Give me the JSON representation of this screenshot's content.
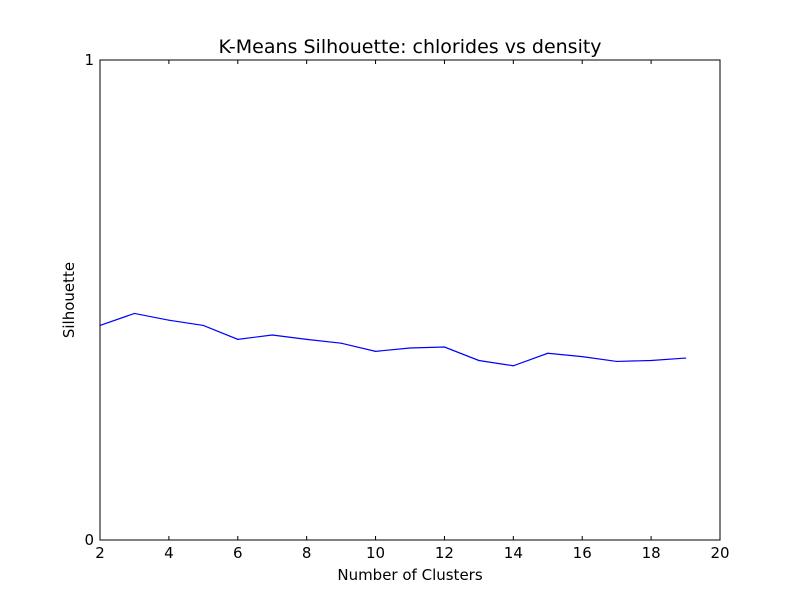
{
  "chart_data": {
    "type": "line",
    "title": "K-Means Silhouette: chlorides vs density",
    "xlabel": "Number of Clusters",
    "ylabel": "Silhouette",
    "xlim": [
      2,
      20
    ],
    "ylim": [
      0,
      1
    ],
    "x_ticks": [
      2,
      4,
      6,
      8,
      10,
      12,
      14,
      16,
      18,
      20
    ],
    "y_ticks": [
      0,
      1
    ],
    "grid": false,
    "line_color": "#0000ff",
    "series": [
      {
        "x": [
          2,
          3,
          4,
          5,
          6,
          7,
          8,
          9,
          10,
          11,
          12,
          13,
          14,
          15,
          16,
          17,
          18,
          19
        ],
        "values": [
          0.447,
          0.472,
          0.458,
          0.447,
          0.418,
          0.427,
          0.418,
          0.41,
          0.393,
          0.4,
          0.402,
          0.374,
          0.363,
          0.389,
          0.382,
          0.372,
          0.374,
          0.379
        ]
      }
    ]
  }
}
